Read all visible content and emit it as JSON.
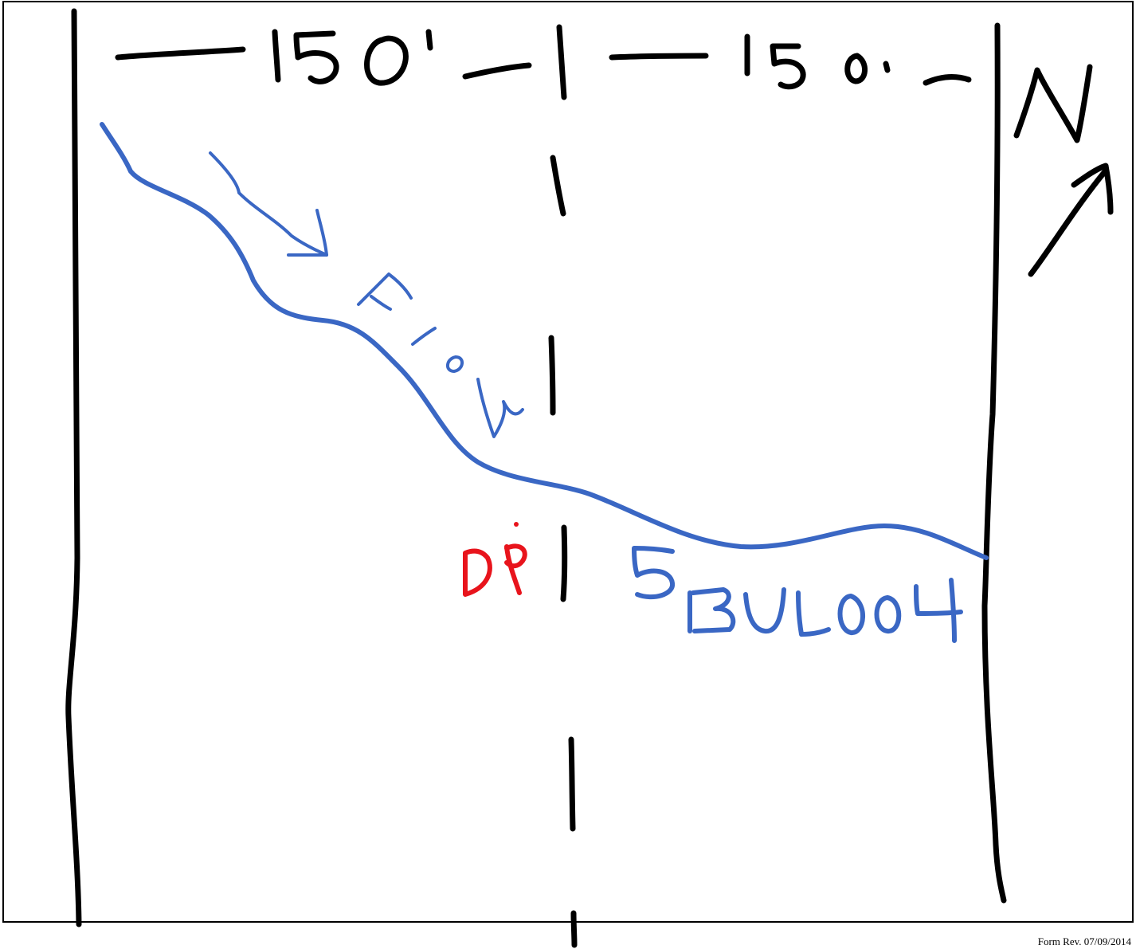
{
  "sketch": {
    "dimension_left": "150'",
    "dimension_right": "150'",
    "north_label": "N",
    "flow_label": "Flow",
    "point_label": "DP",
    "station_label": "SBUL004"
  },
  "footer": {
    "form_rev": "Form Rev. 07/09/2014"
  },
  "colors": {
    "frame": "#000000",
    "ink_black": "#000000",
    "ink_blue": "#3a67c4",
    "ink_red": "#e8141c"
  },
  "icons": {
    "north_arrow": "north-arrow-icon"
  }
}
